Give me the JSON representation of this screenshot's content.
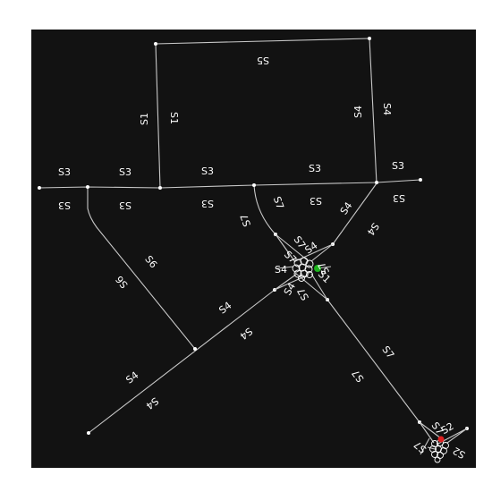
{
  "map": {
    "background": "#121212",
    "road_color": "#c8c8c8",
    "label_color": "#ffffff",
    "marker_start_color": "#1db31d",
    "marker_end_color": "#e02020",
    "street_labels": {
      "s1": "S1",
      "s2": "S2",
      "s3": "S3",
      "s4": "S4",
      "s5": "S5",
      "s6": "S6",
      "s7": "S7"
    }
  }
}
